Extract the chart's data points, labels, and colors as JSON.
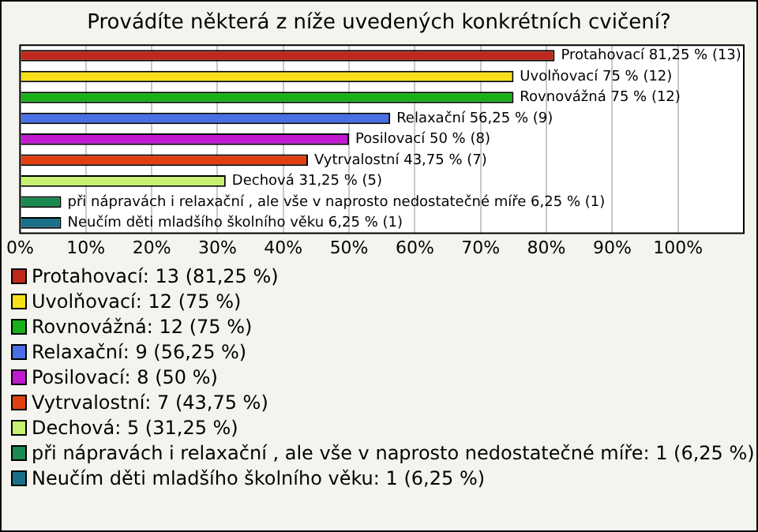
{
  "chart_data": {
    "type": "bar",
    "orientation": "horizontal",
    "stacked": true,
    "title": "Provádíte některá z níže uvedených konkrétních cvičení?",
    "categories": [
      null,
      null,
      null,
      null,
      null,
      null,
      null,
      null,
      null
    ],
    "series": [
      {
        "name": "Protahovací: 13 (81,25 %)",
        "color": "#c0281c",
        "values": [
          81.25,
          null,
          null,
          null,
          null,
          null,
          null,
          null,
          null
        ],
        "value_labels": [
          "Protahovací 81,25 % (13)",
          null,
          null,
          null,
          null,
          null,
          null,
          null,
          null
        ]
      },
      {
        "name": "Uvolňovací: 12 (75 %)",
        "color": "#f7e01a",
        "values": [
          null,
          75,
          null,
          null,
          null,
          null,
          null,
          null,
          null
        ],
        "value_labels": [
          null,
          "Uvolňovací 75 % (12)",
          null,
          null,
          null,
          null,
          null,
          null,
          null
        ]
      },
      {
        "name": "Rovnovážná: 12 (75 %)",
        "color": "#1ab01a",
        "values": [
          null,
          null,
          75,
          null,
          null,
          null,
          null,
          null,
          null
        ],
        "value_labels": [
          null,
          null,
          "Rovnovážná 75 % (12)",
          null,
          null,
          null,
          null,
          null,
          null
        ]
      },
      {
        "name": "Relaxační: 9 (56,25 %)",
        "color": "#4a6fe6",
        "values": [
          null,
          null,
          null,
          56.25,
          null,
          null,
          null,
          null,
          null
        ],
        "value_labels": [
          null,
          null,
          null,
          "Relaxační 56,25 % (9)",
          null,
          null,
          null,
          null,
          null
        ]
      },
      {
        "name": "Posilovací: 8 (50 %)",
        "color": "#c01ad0",
        "values": [
          null,
          null,
          null,
          null,
          50,
          null,
          null,
          null,
          null
        ],
        "value_labels": [
          null,
          null,
          null,
          null,
          "Posilovací 50 % (8)",
          null,
          null,
          null,
          null
        ]
      },
      {
        "name": "Vytrvalostní: 7 (43,75 %)",
        "color": "#e04010",
        "values": [
          null,
          null,
          null,
          null,
          null,
          43.75,
          null,
          null,
          null
        ],
        "value_labels": [
          null,
          null,
          null,
          null,
          null,
          "Vytrvalostní 43,75 % (7)",
          null,
          null,
          null
        ]
      },
      {
        "name": "Dechová: 5 (31,25 %)",
        "color": "#c8f070",
        "values": [
          null,
          null,
          null,
          null,
          null,
          null,
          31.25,
          null,
          null
        ],
        "value_labels": [
          null,
          null,
          null,
          null,
          null,
          null,
          "Dechová 31,25 % (5)",
          null,
          null
        ]
      },
      {
        "name": "při nápravách i relaxační , ale vše v naprosto nedostatečné míře: 1 (6,25 %)",
        "color": "#1a8a50",
        "values": [
          null,
          null,
          null,
          null,
          null,
          null,
          null,
          6.25,
          null
        ],
        "value_labels": [
          null,
          null,
          null,
          null,
          null,
          null,
          null,
          "při nápravách i relaxační , ale vše v naprosto nedostatečné míře 6,25 % (1)",
          null
        ]
      },
      {
        "name": "Neučím děti mladšího školního věku: 1 (6,25 %)",
        "color": "#1a7088",
        "values": [
          null,
          null,
          null,
          null,
          null,
          null,
          null,
          null,
          6.25
        ],
        "value_labels": [
          null,
          null,
          null,
          null,
          null,
          null,
          null,
          null,
          "Neučím děti mladšího školního věku 6,25 % (1)"
        ]
      }
    ],
    "xlim": [
      0,
      110
    ],
    "xticks": [
      {
        "value": 0,
        "label": "0%"
      },
      {
        "value": 10,
        "label": "10%"
      },
      {
        "value": 20,
        "label": "20%"
      },
      {
        "value": 30,
        "label": "30%"
      },
      {
        "value": 40,
        "label": "40%"
      },
      {
        "value": 50,
        "label": "50%"
      },
      {
        "value": 60,
        "label": "60%"
      },
      {
        "value": 70,
        "label": "70%"
      },
      {
        "value": 80,
        "label": "80%"
      },
      {
        "value": 90,
        "label": "90%"
      },
      {
        "value": 100,
        "label": "100%"
      }
    ],
    "grid": "x",
    "tick_labels": "x",
    "legend": "bottom"
  }
}
